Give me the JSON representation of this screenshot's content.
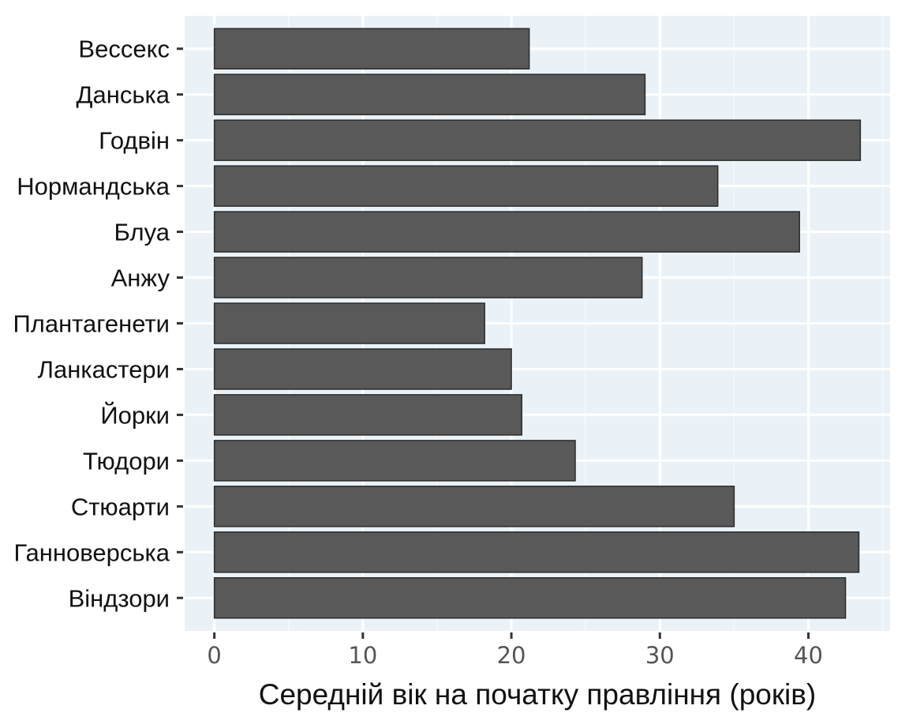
{
  "chart_data": {
    "type": "bar",
    "orientation": "horizontal",
    "categories": [
      "Вессекс",
      "Данська",
      "Годвін",
      "Нормандська",
      "Блуа",
      "Анжу",
      "Плантагенети",
      "Ланкастери",
      "Йорки",
      "Тюдори",
      "Стюарти",
      "Ганноверська",
      "Віндзори"
    ],
    "values": [
      21.2,
      29.0,
      43.5,
      33.9,
      39.4,
      28.8,
      18.2,
      20.0,
      20.7,
      24.3,
      35.0,
      43.4,
      42.5
    ],
    "xlabel": "Середній вік на початку правління (років)",
    "ylabel": "",
    "xlim": [
      -2,
      45.5
    ],
    "xticks": [
      0,
      10,
      20,
      30,
      40
    ],
    "grid": true,
    "colors": {
      "bar_fill": "#595959",
      "bar_stroke": "#2b2b2b",
      "panel_background": "#ebf2f7",
      "grid_major": "#ffffff",
      "grid_minor": "#f5f8fb"
    }
  }
}
